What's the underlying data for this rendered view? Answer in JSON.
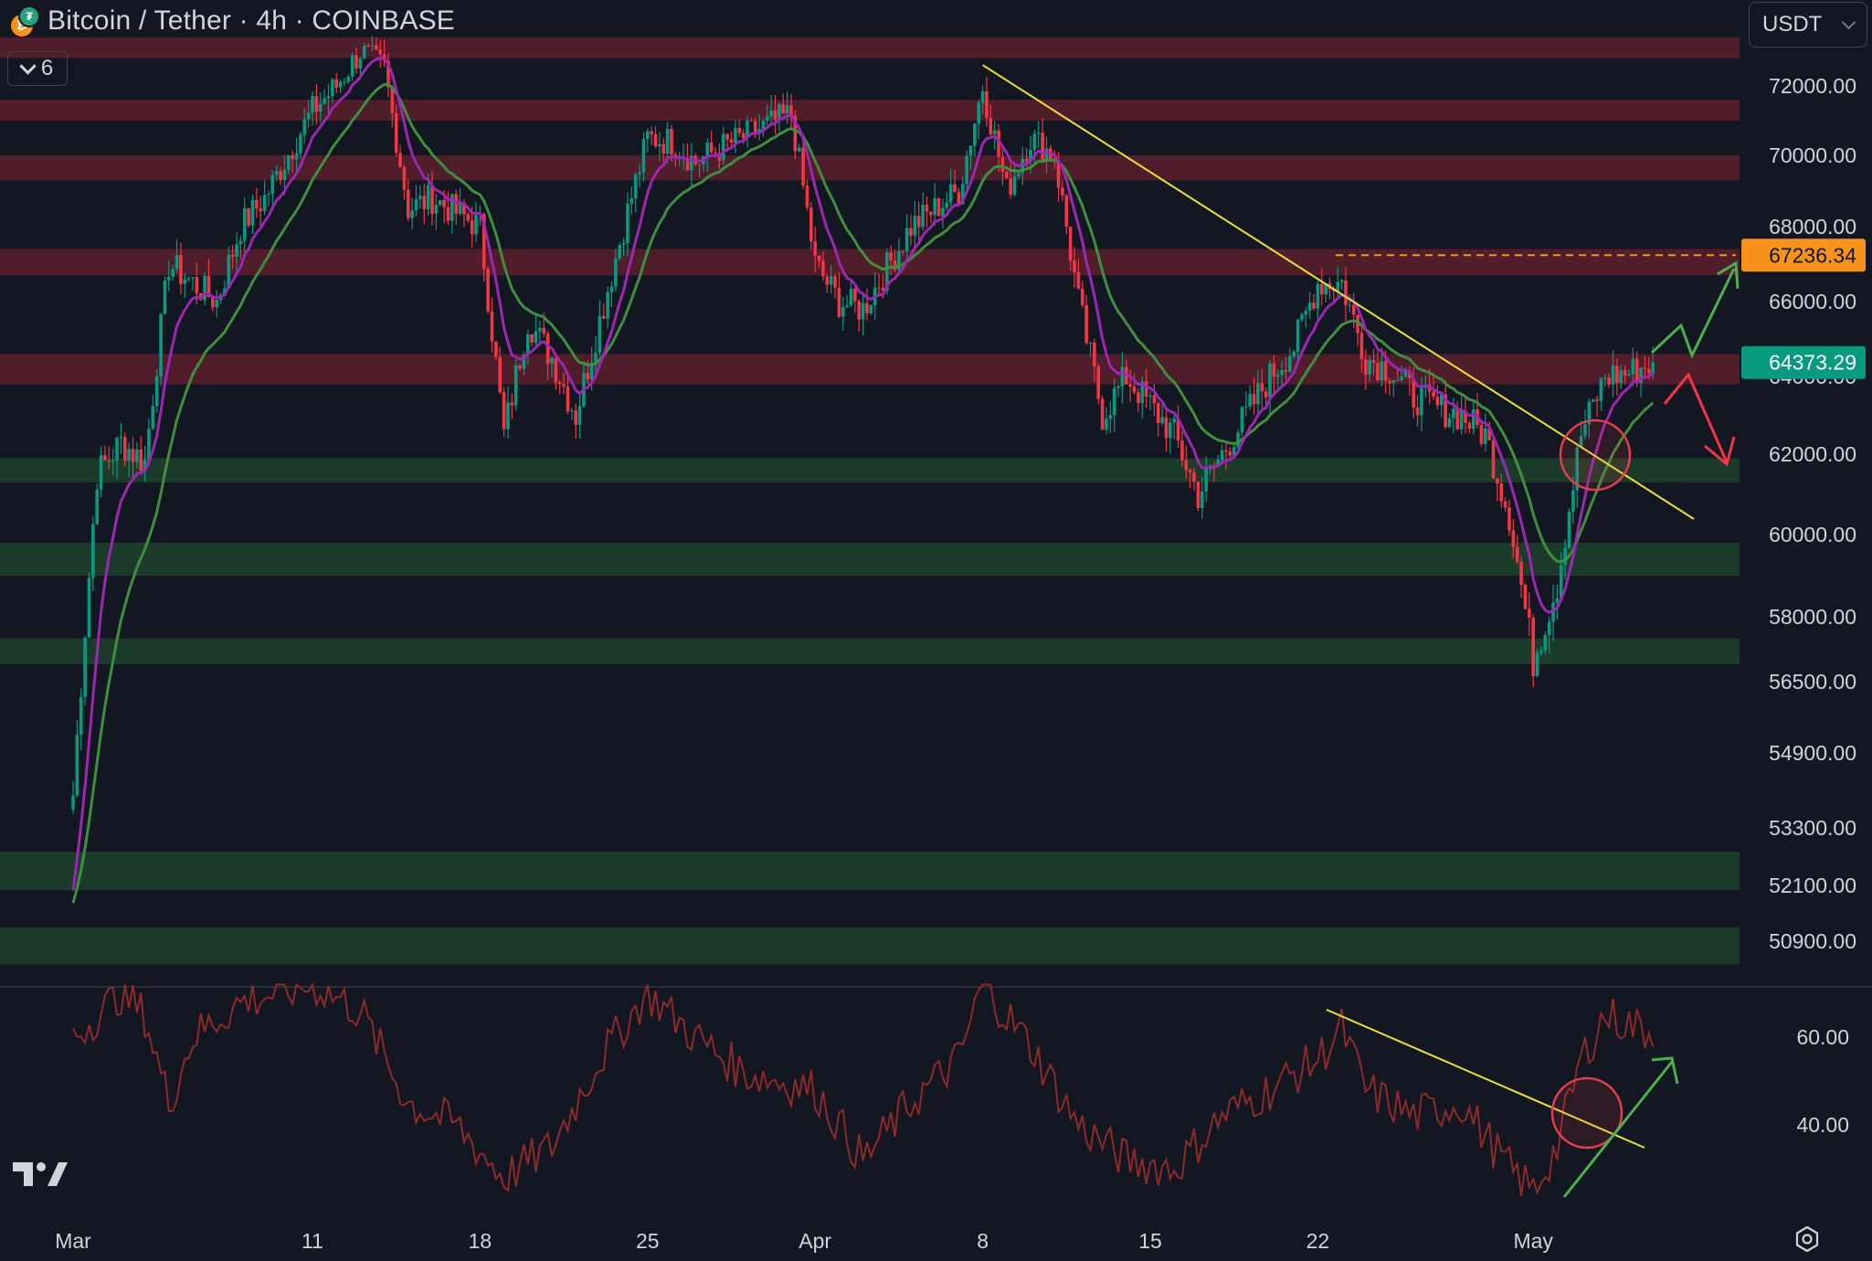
{
  "header": {
    "title": "Bitcoin / Tether · 4h · COINBASE",
    "base_icon": "bitcoin-icon",
    "quote_icon": "tether-icon",
    "indicators_count": "6"
  },
  "currency_selector": {
    "value": "USDT"
  },
  "icons": {
    "logo": "tradingview-logo",
    "settings": "gear-icon"
  },
  "colors": {
    "background": "#131722",
    "bull_candle": "#089981",
    "bear_candle": "#f23645",
    "resistance_zone": "#5c1f2b",
    "support_zone": "#1e3f2c",
    "trendline": "#e8e23c",
    "ema_fast": "#9c27b0",
    "ema_slow": "#3f8f3f",
    "rsi_line": "#8e2a2a"
  },
  "chart_data": [
    {
      "type": "candlestick",
      "title": "Bitcoin / Tether · 4h · COINBASE",
      "timeframe": "4h",
      "y_scale": "nonlinear",
      "x_tick_labels": [
        "Mar",
        "11",
        "18",
        "25",
        "Apr",
        "8",
        "15",
        "22",
        "May"
      ],
      "y_tick_labels": [
        "72000.00",
        "70000.00",
        "68000.00",
        "66000.00",
        "64000.00",
        "62000.00",
        "60000.00",
        "58000.00",
        "56500.00",
        "54900.00",
        "53300.00",
        "52100.00",
        "50900.00"
      ],
      "price_markers": [
        {
          "label": "67236.34",
          "color": "#f7931a",
          "style": "dashed-level"
        },
        {
          "label": "64373.29",
          "color": "#089981",
          "style": "last-price"
        }
      ],
      "close_path": [
        [
          "Mar 1",
          54000
        ],
        [
          "Mar 2",
          61500
        ],
        [
          "Mar 3",
          62300
        ],
        [
          "Mar 4",
          61800
        ],
        [
          "Mar 5",
          67000
        ],
        [
          "Mar 6",
          66500
        ],
        [
          "Mar 7",
          66000
        ],
        [
          "Mar 8",
          68000
        ],
        [
          "Mar 9",
          68800
        ],
        [
          "Mar 11",
          71300
        ],
        [
          "Mar 12",
          72000
        ],
        [
          "Mar 13",
          73000
        ],
        [
          "Mar 14",
          72500
        ],
        [
          "Mar 15",
          68500
        ],
        [
          "Mar 16",
          68800
        ],
        [
          "Mar 18",
          68000
        ],
        [
          "Mar 19",
          62500
        ],
        [
          "Mar 20",
          65500
        ],
        [
          "Mar 21",
          64500
        ],
        [
          "Mar 22",
          63000
        ],
        [
          "Mar 25",
          70500
        ],
        [
          "Mar 26",
          70400
        ],
        [
          "Mar 27",
          69800
        ],
        [
          "Mar 28",
          70200
        ],
        [
          "Mar 31",
          71200
        ],
        [
          "Apr 1",
          67000
        ],
        [
          "Apr 2",
          66000
        ],
        [
          "Apr 3",
          65800
        ],
        [
          "Apr 5",
          68000
        ],
        [
          "Apr 7",
          69000
        ],
        [
          "Apr 8",
          72000
        ],
        [
          "Apr 9",
          69000
        ],
        [
          "Apr 10",
          70500
        ],
        [
          "Apr 11",
          70000
        ],
        [
          "Apr 12",
          66000
        ],
        [
          "Apr 13",
          63000
        ],
        [
          "Apr 14",
          64000
        ],
        [
          "Apr 16",
          62500
        ],
        [
          "Apr 17",
          61000
        ],
        [
          "Apr 18",
          62000
        ],
        [
          "Apr 20",
          64000
        ],
        [
          "Apr 21",
          64800
        ],
        [
          "Apr 22",
          66500
        ],
        [
          "Apr 23",
          66500
        ],
        [
          "Apr 24",
          64500
        ],
        [
          "Apr 25",
          64200
        ],
        [
          "Apr 26",
          63500
        ],
        [
          "Apr 27",
          63200
        ],
        [
          "Apr 28",
          63000
        ],
        [
          "Apr 29",
          62500
        ],
        [
          "Apr 30",
          60500
        ],
        [
          "May 1",
          57000
        ],
        [
          "May 2",
          58800
        ],
        [
          "May 3",
          62500
        ],
        [
          "May 4",
          64000
        ],
        [
          "May 5",
          64100
        ],
        [
          "May 6",
          64373.29
        ]
      ],
      "resistance_zones": [
        [
          72800,
          73400
        ],
        [
          71000,
          71600
        ],
        [
          69300,
          70000
        ],
        [
          66700,
          67400
        ],
        [
          63800,
          64600
        ]
      ],
      "support_zones": [
        [
          61300,
          61900
        ],
        [
          59000,
          59800
        ],
        [
          56900,
          57500
        ],
        [
          52000,
          52800
        ],
        [
          50400,
          51200
        ]
      ],
      "series": [
        {
          "name": "",
          "kind": "ema-fast"
        },
        {
          "name": "",
          "kind": "ema-slow"
        }
      ]
    },
    {
      "type": "line",
      "title": "",
      "y_tick_labels": [
        "60.00",
        "40.00"
      ],
      "ylim": [
        18,
        72
      ],
      "points": [
        [
          "Mar 1",
          60
        ],
        [
          "Mar 3",
          70
        ],
        [
          "Mar 4",
          65
        ],
        [
          "Mar 5",
          45
        ],
        [
          "Mar 6",
          60
        ],
        [
          "Mar 8",
          68
        ],
        [
          "Mar 11",
          72
        ],
        [
          "Mar 13",
          66
        ],
        [
          "Mar 15",
          45
        ],
        [
          "Mar 17",
          40
        ],
        [
          "Mar 19",
          28
        ],
        [
          "Mar 21",
          35
        ],
        [
          "Mar 23",
          55
        ],
        [
          "Mar 25",
          70
        ],
        [
          "Mar 27",
          60
        ],
        [
          "Mar 29",
          52
        ],
        [
          "Apr 1",
          48
        ],
        [
          "Apr 3",
          32
        ],
        [
          "Apr 5",
          45
        ],
        [
          "Apr 7",
          55
        ],
        [
          "Apr 8",
          72
        ],
        [
          "Apr 10",
          58
        ],
        [
          "Apr 12",
          40
        ],
        [
          "Apr 14",
          32
        ],
        [
          "Apr 16",
          30
        ],
        [
          "Apr 18",
          42
        ],
        [
          "Apr 20",
          48
        ],
        [
          "Apr 22",
          55
        ],
        [
          "Apr 23",
          62
        ],
        [
          "Apr 24",
          48
        ],
        [
          "Apr 26",
          42
        ],
        [
          "Apr 28",
          45
        ],
        [
          "Apr 30",
          30
        ],
        [
          "May 1",
          25
        ],
        [
          "May 2",
          35
        ],
        [
          "May 3",
          55
        ],
        [
          "May 4",
          65
        ],
        [
          "May 5",
          63
        ],
        [
          "May 6",
          61
        ]
      ]
    }
  ]
}
